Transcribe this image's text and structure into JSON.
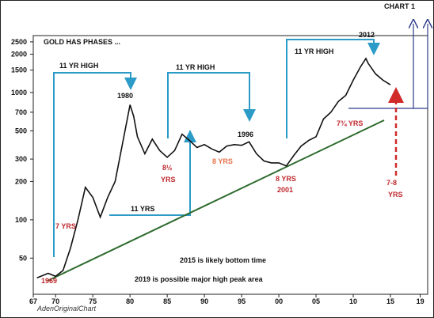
{
  "chart_data": {
    "type": "line",
    "title": "GOLD HAS PHASES ...",
    "chart_label": "CHART 1",
    "log_scale": true,
    "color": "#111111",
    "x": [
      1967.5,
      1969,
      1970,
      1971,
      1972,
      1973,
      1974,
      1975,
      1976,
      1977,
      1978,
      1979,
      1980,
      1980.5,
      1981,
      1982,
      1983,
      1984,
      1985,
      1986,
      1987,
      1988,
      1989,
      1990,
      1991,
      1992,
      1993,
      1994,
      1995,
      1996,
      1997,
      1998,
      1999,
      2000,
      2001,
      2002,
      2003,
      2004,
      2005,
      2006,
      2007,
      2008,
      2009,
      2010,
      2011,
      2011.7,
      2012,
      2013,
      2014,
      2015
    ],
    "values": [
      35,
      38,
      36,
      40,
      60,
      100,
      180,
      150,
      105,
      150,
      200,
      400,
      800,
      650,
      450,
      330,
      430,
      350,
      310,
      350,
      470,
      420,
      370,
      390,
      360,
      340,
      380,
      390,
      385,
      410,
      330,
      290,
      280,
      280,
      265,
      320,
      380,
      420,
      450,
      620,
      700,
      850,
      950,
      1250,
      1600,
      1850,
      1700,
      1400,
      1250,
      1150
    ],
    "xlim": [
      1967,
      2020
    ],
    "ylim": [
      26,
      2800
    ],
    "xticks": [
      {
        "value": 1967,
        "label": "67"
      },
      {
        "value": 1970,
        "label": "70"
      },
      {
        "value": 1975,
        "label": "75"
      },
      {
        "value": 1980,
        "label": "80"
      },
      {
        "value": 1985,
        "label": "85"
      },
      {
        "value": 1990,
        "label": "90"
      },
      {
        "value": 1995,
        "label": "95"
      },
      {
        "value": 2000,
        "label": "00"
      },
      {
        "value": 2005,
        "label": "05"
      },
      {
        "value": 2010,
        "label": "10"
      },
      {
        "value": 2015,
        "label": "15"
      },
      {
        "value": 2019,
        "label": "19"
      }
    ],
    "yticks": [
      50,
      100,
      200,
      300,
      500,
      700,
      1000,
      1500,
      2000,
      2500
    ],
    "annotations": [
      {
        "text": "11 YR HIGH",
        "color": "#111111"
      },
      {
        "text": "11 YR HIGH",
        "color": "#111111"
      },
      {
        "text": "11 YR HIGH",
        "color": "#111111"
      },
      {
        "text": "1980",
        "color": "#111111"
      },
      {
        "text": "1996",
        "color": "#111111"
      },
      {
        "text": "2012",
        "color": "#111111"
      },
      {
        "text": "1969",
        "color": "#c0282d"
      },
      {
        "text": "7 YRS",
        "color": "#c0282d"
      },
      {
        "text": "11 YRS",
        "color": "#111111"
      },
      {
        "text": "8½",
        "color": "#c0282d"
      },
      {
        "text": "YRS",
        "color": "#c0282d"
      },
      {
        "text": "8 YRS",
        "color": "#e8704a"
      },
      {
        "text": "8 YRS",
        "color": "#c0282d"
      },
      {
        "text": "2001",
        "color": "#c0282d"
      },
      {
        "text": "7¾ YRS",
        "color": "#c0282d"
      },
      {
        "text": "7-8",
        "color": "#c0282d"
      },
      {
        "text": "YRS",
        "color": "#c0282d"
      },
      {
        "text": "2015 is likely bottom time",
        "color": "#111111"
      },
      {
        "text": "2019 is possible major high peak area",
        "color": "#111111"
      },
      {
        "text": "AdenOriginalChart",
        "color": "#333333"
      }
    ]
  }
}
